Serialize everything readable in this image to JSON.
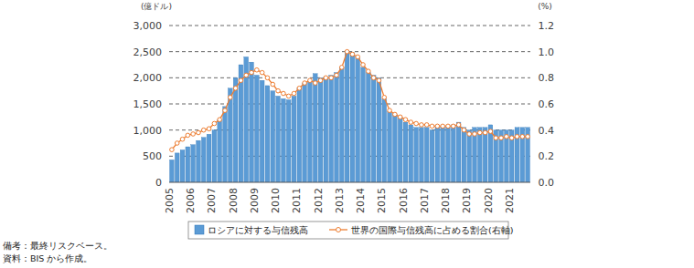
{
  "chart_data": {
    "type": "bar",
    "y_label": "(億ドル)",
    "y2_label": "(%)",
    "annotations": [
      "備考：最終リスクベース。",
      "資料：BIS から作成。"
    ],
    "categories": [
      "2005",
      null,
      null,
      null,
      "2006",
      null,
      null,
      null,
      "2007",
      null,
      null,
      null,
      "2008",
      null,
      null,
      null,
      "2009",
      null,
      null,
      null,
      "2010",
      null,
      null,
      null,
      "2011",
      null,
      null,
      null,
      "2012",
      null,
      null,
      null,
      "2013",
      null,
      null,
      null,
      "2014",
      null,
      null,
      null,
      "2015",
      null,
      null,
      null,
      "2016",
      null,
      null,
      null,
      "2017",
      null,
      null,
      null,
      "2018",
      null,
      null,
      null,
      "2019",
      null,
      null,
      null,
      "2020",
      null,
      null,
      null,
      "2021",
      null,
      null,
      null
    ],
    "series": [
      {
        "name": "ロシアに対する与信残高",
        "type": "bar",
        "color": "#5b9bd5",
        "values": [
          430,
          560,
          620,
          680,
          720,
          800,
          860,
          920,
          1000,
          1200,
          1450,
          1800,
          2000,
          2250,
          2400,
          2300,
          2050,
          1950,
          1850,
          1750,
          1650,
          1600,
          1580,
          1650,
          1800,
          1900,
          1950,
          2080,
          2000,
          2000,
          2050,
          2100,
          2200,
          2500,
          2480,
          2400,
          2200,
          2100,
          2050,
          2000,
          1600,
          1350,
          1300,
          1250,
          1150,
          1100,
          1050,
          1050,
          1050,
          1000,
          1050,
          1050,
          1050,
          1100,
          1150,
          1050,
          1000,
          1050,
          1050,
          1050,
          1100,
          1000,
          1000,
          1000,
          1000,
          1050,
          1050,
          1050
        ]
      },
      {
        "name": "世界の国際与信残高に占める割合(右軸)",
        "type": "line",
        "axis": "y2",
        "color": "#ed7d31",
        "marker": "circle",
        "line_style": "solid",
        "values": [
          0.25,
          0.3,
          0.33,
          0.36,
          0.37,
          0.38,
          0.4,
          0.41,
          0.45,
          0.48,
          0.55,
          0.65,
          0.72,
          0.78,
          0.82,
          0.84,
          0.86,
          0.84,
          0.8,
          0.75,
          0.7,
          0.68,
          0.66,
          0.68,
          0.72,
          0.76,
          0.78,
          0.76,
          0.78,
          0.8,
          0.8,
          0.82,
          0.88,
          1.0,
          0.98,
          0.96,
          0.9,
          0.85,
          0.8,
          0.78,
          0.65,
          0.55,
          0.52,
          0.5,
          0.48,
          0.46,
          0.45,
          0.44,
          0.44,
          0.43,
          0.43,
          0.43,
          0.43,
          0.43,
          0.44,
          0.4,
          0.37,
          0.37,
          0.38,
          0.38,
          0.39,
          0.34,
          0.34,
          0.35,
          0.34,
          0.35,
          0.35,
          0.35
        ]
      }
    ],
    "ylim": [
      0,
      3000
    ],
    "yticks": [
      0,
      500,
      {
        "value": 1000,
        "label": "1,000"
      },
      {
        "value": 1500,
        "label": "1,500"
      },
      {
        "value": 2000,
        "label": "2,000"
      },
      {
        "value": 2500,
        "label": "2,500"
      },
      {
        "value": 3000,
        "label": "3,000"
      }
    ],
    "y2lim": [
      0,
      1.2
    ],
    "y2ticks": [
      {
        "value": 0,
        "label": "0.0"
      },
      0.2,
      0.4,
      0.6,
      0.8,
      {
        "value": 1,
        "label": "1.0"
      },
      1.2
    ],
    "grid": true,
    "legend": "bottom"
  }
}
